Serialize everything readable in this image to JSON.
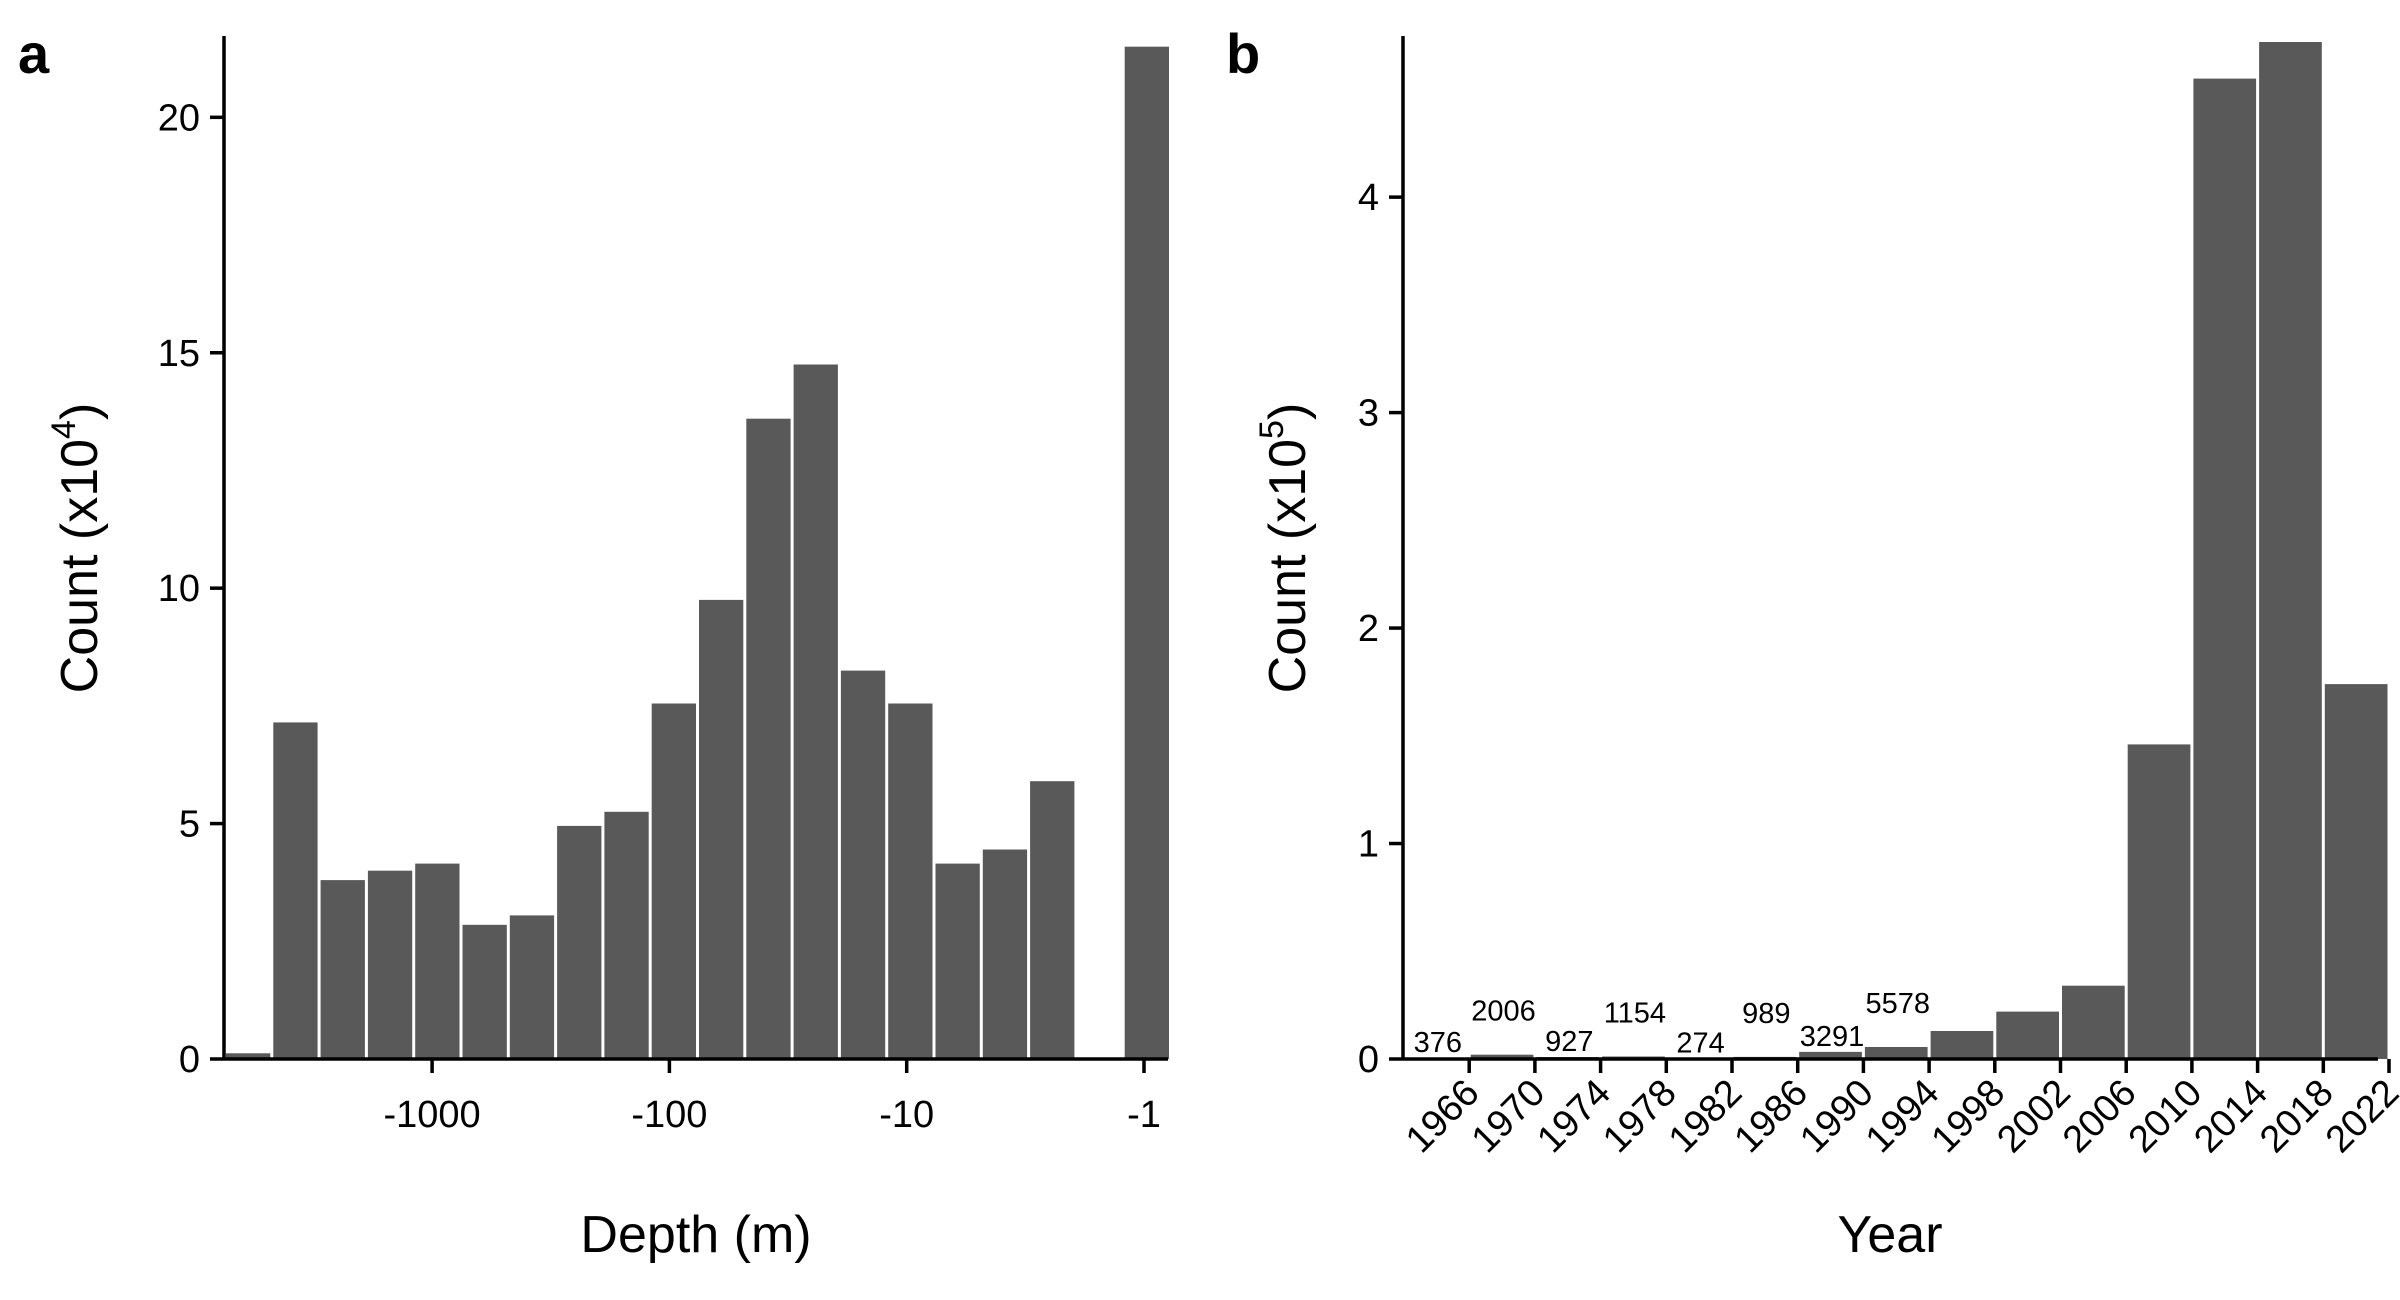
{
  "chart_data": [
    {
      "panel_label": "a",
      "type": "bar",
      "xlabel": "Depth (m)",
      "ylabel": "Count (x10",
      "ylabel_exp": "4",
      "ylabel_close": ")",
      "ylim": [
        0,
        21.6
      ],
      "y_ticks": [
        "0",
        "5",
        "10",
        "15",
        "20"
      ],
      "y_tick_values": [
        0,
        5,
        10,
        15,
        20
      ],
      "x_tick_labels": [
        "-1000",
        "-100",
        "-10",
        "-1"
      ],
      "x_tick_positions": [
        -1000,
        -100,
        -10,
        -1
      ],
      "x_scale": "log (negative depth)",
      "values": [
        0.12,
        7.15,
        3.8,
        4.0,
        4.15,
        2.85,
        3.05,
        4.95,
        5.25,
        7.55,
        9.75,
        13.6,
        14.75,
        8.25,
        7.55,
        4.15,
        4.45,
        5.9,
        0,
        21.5
      ]
    },
    {
      "panel_label": "b",
      "type": "bar",
      "xlabel": "Year",
      "ylabel": "Count (x10",
      "ylabel_exp": "5",
      "ylabel_close": ")",
      "ylim": [
        0,
        4.72
      ],
      "y_ticks": [
        "0",
        "1",
        "2",
        "3",
        "4"
      ],
      "y_tick_values": [
        0,
        1,
        2,
        3,
        4
      ],
      "x_tick_labels": [
        "1966",
        "1970",
        "1974",
        "1978",
        "1982",
        "1986",
        "1990",
        "1994",
        "1998",
        "2002",
        "2006",
        "2010",
        "2014",
        "2018",
        "2022"
      ],
      "values": [
        0.00376,
        0.02006,
        0.00927,
        0.01154,
        0.00274,
        0.00989,
        0.03291,
        0.05578,
        0.13,
        0.22,
        0.34,
        1.46,
        4.55,
        4.72,
        1.74
      ],
      "data_labels": [
        "376",
        "2006",
        "927",
        "1154",
        "274",
        "989",
        "3291",
        "5578",
        "",
        "",
        "",
        "",
        "",
        "",
        ""
      ]
    }
  ]
}
